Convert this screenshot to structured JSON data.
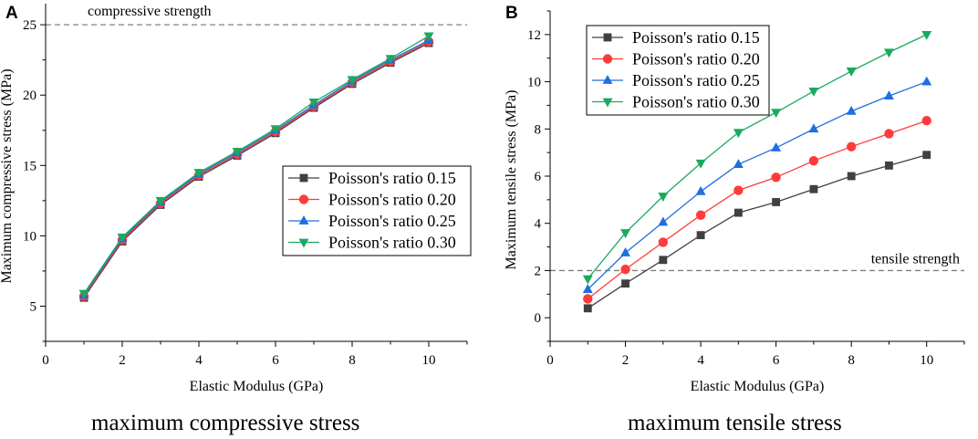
{
  "chart_data": [
    {
      "type": "line",
      "panel_label": "A",
      "xlabel": "Elastic Modulus (GPa)",
      "ylabel": "Maximum compressive stress (MPa)",
      "caption": "maximum compressive stress",
      "xlim": [
        0,
        11
      ],
      "ylim": [
        2.5,
        26.5
      ],
      "xticks": [
        0,
        2,
        4,
        6,
        8,
        10
      ],
      "yticks": [
        5,
        10,
        15,
        20,
        25
      ],
      "reference_line": {
        "value": 25,
        "label": "compressive strength"
      },
      "legend_position": "center-right",
      "x": [
        1,
        2,
        3,
        4,
        5,
        6,
        7,
        8,
        9,
        10
      ],
      "series": [
        {
          "name": "Poisson's ratio 0.15",
          "color": "#404040",
          "marker": "square",
          "values": [
            5.6,
            9.6,
            12.2,
            14.2,
            15.7,
            17.3,
            19.1,
            20.8,
            22.3,
            23.7
          ]
        },
        {
          "name": "Poisson's ratio 0.20",
          "color": "#ff3b3b",
          "marker": "circle",
          "values": [
            5.7,
            9.7,
            12.3,
            14.3,
            15.8,
            17.4,
            19.2,
            20.9,
            22.4,
            23.8
          ]
        },
        {
          "name": "Poisson's ratio 0.25",
          "color": "#1f6fe0",
          "marker": "triangle-up",
          "values": [
            5.8,
            9.8,
            12.4,
            14.4,
            15.9,
            17.5,
            19.3,
            21.0,
            22.5,
            23.9
          ]
        },
        {
          "name": "Poisson's ratio 0.30",
          "color": "#1aaa5e",
          "marker": "triangle-down",
          "values": [
            5.9,
            9.9,
            12.5,
            14.5,
            16.0,
            17.6,
            19.5,
            21.1,
            22.6,
            24.2
          ]
        }
      ]
    },
    {
      "type": "line",
      "panel_label": "B",
      "xlabel": "Elastic Modulus (GPa)",
      "ylabel": "Maximum tensile stress (MPa)",
      "caption": "maximum tensile stress",
      "xlim": [
        0,
        11
      ],
      "ylim": [
        -1,
        13
      ],
      "xticks": [
        0,
        2,
        4,
        6,
        8,
        10
      ],
      "yticks": [
        0,
        2,
        4,
        6,
        8,
        10,
        12
      ],
      "reference_line": {
        "value": 2,
        "label": "tensile strength"
      },
      "legend_position": "top-left",
      "x": [
        1,
        2,
        3,
        4,
        5,
        6,
        7,
        8,
        9,
        10
      ],
      "series": [
        {
          "name": "Poisson's ratio 0.15",
          "color": "#404040",
          "marker": "square",
          "values": [
            0.4,
            1.45,
            2.45,
            3.5,
            4.45,
            4.9,
            5.45,
            6.0,
            6.45,
            6.9
          ]
        },
        {
          "name": "Poisson's ratio 0.20",
          "color": "#ff3b3b",
          "marker": "circle",
          "values": [
            0.8,
            2.05,
            3.2,
            4.35,
            5.4,
            5.95,
            6.65,
            7.25,
            7.8,
            8.35
          ]
        },
        {
          "name": "Poisson's ratio 0.25",
          "color": "#1f6fe0",
          "marker": "triangle-up",
          "values": [
            1.2,
            2.75,
            4.05,
            5.35,
            6.5,
            7.2,
            8.0,
            8.75,
            9.4,
            10.0
          ]
        },
        {
          "name": "Poisson's ratio 0.30",
          "color": "#1aaa5e",
          "marker": "triangle-down",
          "values": [
            1.65,
            3.6,
            5.15,
            6.55,
            7.85,
            8.7,
            9.6,
            10.45,
            11.25,
            12.0
          ]
        }
      ]
    }
  ]
}
